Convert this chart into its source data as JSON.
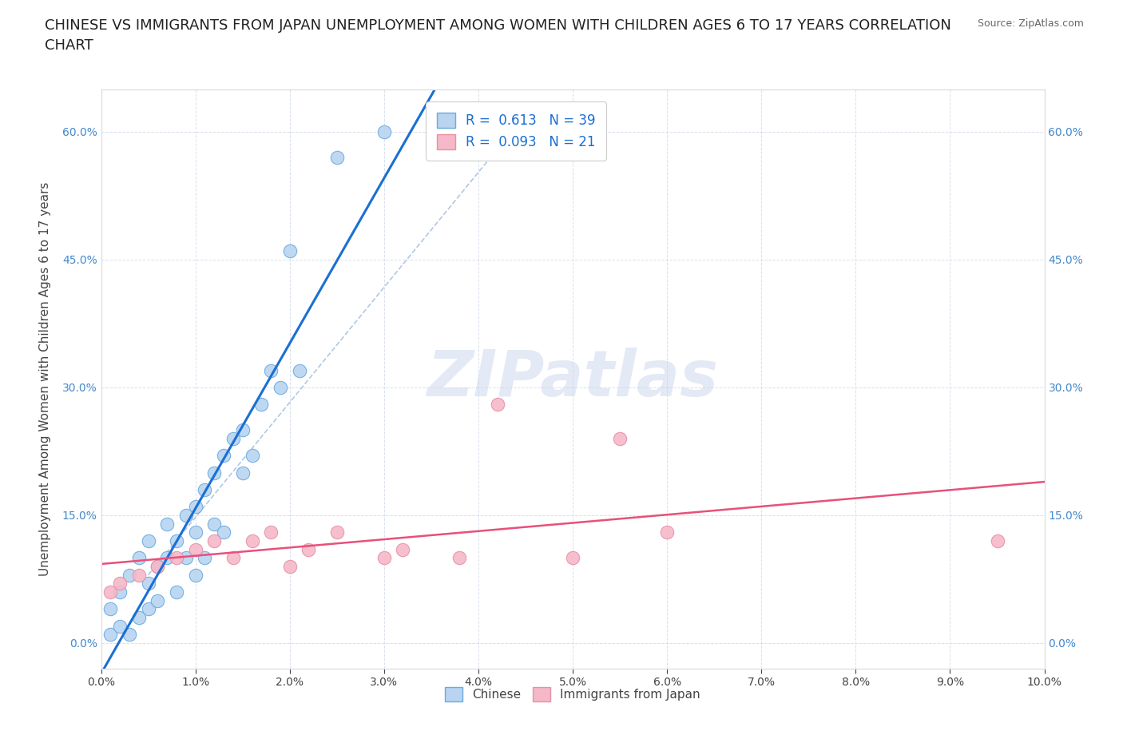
{
  "title": "CHINESE VS IMMIGRANTS FROM JAPAN UNEMPLOYMENT AMONG WOMEN WITH CHILDREN AGES 6 TO 17 YEARS CORRELATION\nCHART",
  "source": "Source: ZipAtlas.com",
  "ylabel": "Unemployment Among Women with Children Ages 6 to 17 years",
  "xlim": [
    0.0,
    0.1
  ],
  "ylim": [
    -0.03,
    0.65
  ],
  "yticks": [
    0.0,
    0.15,
    0.3,
    0.45,
    0.6
  ],
  "xticks": [
    0.0,
    0.01,
    0.02,
    0.03,
    0.04,
    0.05,
    0.06,
    0.07,
    0.08,
    0.09,
    0.1
  ],
  "legend_r1": "R =  0.613   N = 39",
  "legend_r2": "R =  0.093   N = 21",
  "legend_color1": "#b8d4f0",
  "legend_color2": "#f5b8c8",
  "line_color1": "#1a6fd4",
  "line_color2": "#e8507a",
  "scatter_color1": "#b8d4f0",
  "scatter_color2": "#f5b8c8",
  "scatter_edge1": "#6aaae0",
  "scatter_edge2": "#e890a8",
  "watermark": "ZIPatlas",
  "chinese_x": [
    0.001,
    0.001,
    0.002,
    0.002,
    0.003,
    0.003,
    0.004,
    0.004,
    0.005,
    0.005,
    0.005,
    0.006,
    0.006,
    0.007,
    0.007,
    0.008,
    0.008,
    0.009,
    0.009,
    0.01,
    0.01,
    0.01,
    0.011,
    0.011,
    0.012,
    0.012,
    0.013,
    0.013,
    0.014,
    0.015,
    0.015,
    0.016,
    0.017,
    0.018,
    0.019,
    0.02,
    0.021,
    0.025,
    0.03
  ],
  "chinese_y": [
    0.01,
    0.04,
    0.02,
    0.06,
    0.01,
    0.08,
    0.03,
    0.1,
    0.04,
    0.07,
    0.12,
    0.05,
    0.09,
    0.14,
    0.1,
    0.06,
    0.12,
    0.1,
    0.15,
    0.08,
    0.13,
    0.16,
    0.1,
    0.18,
    0.14,
    0.2,
    0.13,
    0.22,
    0.24,
    0.2,
    0.25,
    0.22,
    0.28,
    0.32,
    0.3,
    0.46,
    0.32,
    0.57,
    0.6
  ],
  "japan_x": [
    0.001,
    0.002,
    0.004,
    0.006,
    0.008,
    0.01,
    0.012,
    0.014,
    0.016,
    0.018,
    0.02,
    0.022,
    0.025,
    0.03,
    0.032,
    0.038,
    0.042,
    0.05,
    0.055,
    0.06,
    0.095
  ],
  "japan_y": [
    0.06,
    0.07,
    0.08,
    0.09,
    0.1,
    0.11,
    0.12,
    0.1,
    0.12,
    0.13,
    0.09,
    0.11,
    0.13,
    0.1,
    0.11,
    0.1,
    0.28,
    0.1,
    0.24,
    0.13,
    0.12
  ],
  "grid_color": "#d0d8e8",
  "background_color": "#ffffff",
  "title_fontsize": 13,
  "axis_label_fontsize": 11,
  "tick_fontsize": 10,
  "tick_color_y": "#4488cc",
  "tick_color_x": "#444444"
}
